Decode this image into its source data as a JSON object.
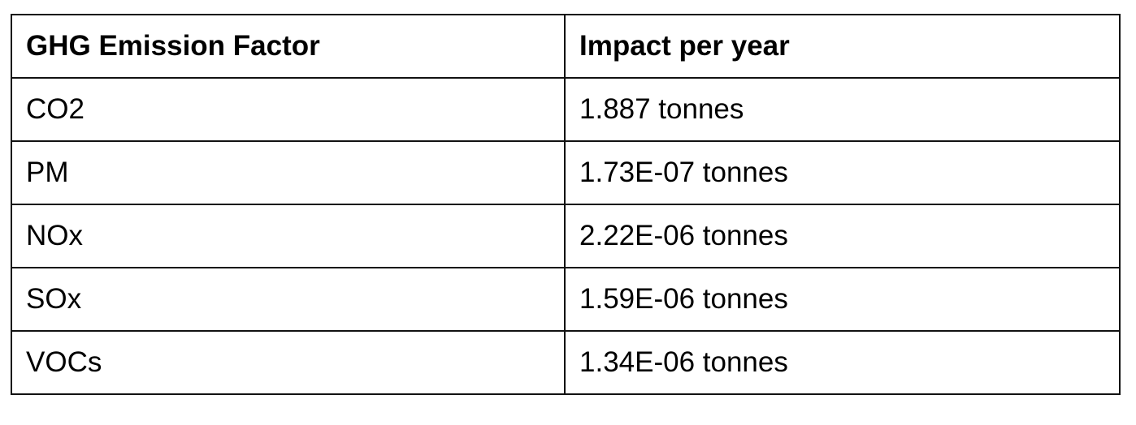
{
  "table": {
    "headers": [
      "GHG Emission Factor",
      "Impact per year"
    ],
    "rows": [
      [
        "CO2",
        "1.887 tonnes"
      ],
      [
        "PM",
        "1.73E-07 tonnes"
      ],
      [
        "NOx",
        "2.22E-06 tonnes"
      ],
      [
        "SOx",
        "1.59E-06 tonnes"
      ],
      [
        "VOCs",
        "1.34E-06 tonnes"
      ]
    ]
  }
}
